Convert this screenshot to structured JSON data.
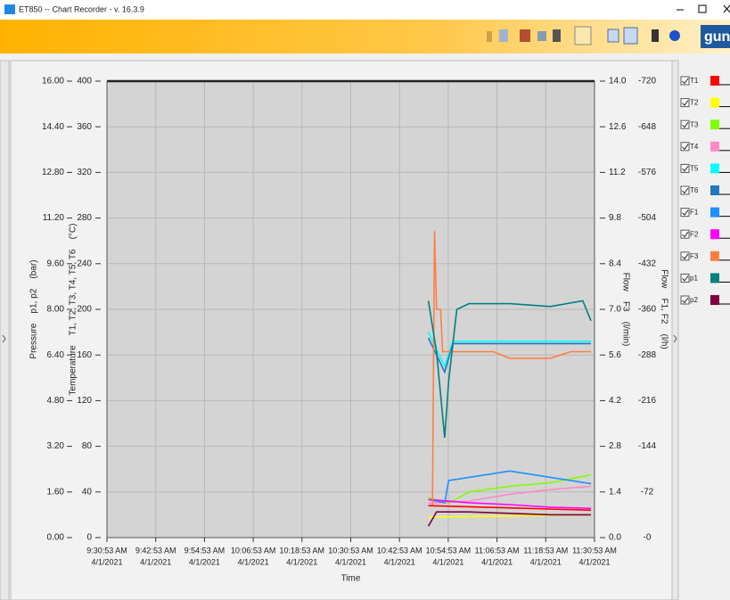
{
  "window": {
    "title": "ET850  --  Chart Recorder - v. 16.3.9",
    "logo": "gunt"
  },
  "chart_data": {
    "type": "line",
    "xlabel": "Time",
    "xlim": [
      "9:30:53 AM",
      "11:30:53 AM"
    ],
    "xticks": [
      {
        "time": "9:30:53 AM",
        "date": "4/1/2021"
      },
      {
        "time": "9:42:53 AM",
        "date": "4/1/2021"
      },
      {
        "time": "9:54:53 AM",
        "date": "4/1/2021"
      },
      {
        "time": "10:06:53 AM",
        "date": "4/1/2021"
      },
      {
        "time": "10:18:53 AM",
        "date": "4/1/2021"
      },
      {
        "time": "10:30:53 AM",
        "date": "4/1/2021"
      },
      {
        "time": "10:42:53 AM",
        "date": "4/1/2021"
      },
      {
        "time": "10:54:53 AM",
        "date": "4/1/2021"
      },
      {
        "time": "11:06:53 AM",
        "date": "4/1/2021"
      },
      {
        "time": "11:18:53 AM",
        "date": "4/1/2021"
      },
      {
        "time": "11:30:53 AM",
        "date": "4/1/2021"
      }
    ],
    "grid": true,
    "axes": {
      "pressure": {
        "label": "Pressure    p1, p2    (bar)",
        "ylim": [
          0,
          16
        ],
        "yticks": [
          {
            "value": 0,
            "label": "0.00"
          },
          {
            "value": 1.6,
            "label": "1.60"
          },
          {
            "value": 3.2,
            "label": "3.20"
          },
          {
            "value": 4.8,
            "label": "4.80"
          },
          {
            "value": 6.4,
            "label": "6.40"
          },
          {
            "value": 8,
            "label": "8.00"
          },
          {
            "value": 9.6,
            "label": "9.60"
          },
          {
            "value": 11.2,
            "label": "11.20"
          },
          {
            "value": 12.8,
            "label": "12.80"
          },
          {
            "value": 14.4,
            "label": "14.40"
          },
          {
            "value": 16,
            "label": "16.00"
          }
        ]
      },
      "temperature": {
        "label": "Temperature    T1, T2, T3, T4, T5, T6    (°C)",
        "ylim": [
          0,
          400
        ],
        "yticks": [
          0,
          40,
          80,
          120,
          160,
          200,
          240,
          280,
          320,
          360,
          400
        ]
      },
      "flow_f3": {
        "label": "Flow    F3    (l/min)",
        "ylim": [
          0,
          14
        ],
        "yticks": [
          {
            "value": 0,
            "label": "0.0"
          },
          1.4,
          2.8,
          4.2,
          5.6,
          {
            "value": 7,
            "label": "7.0"
          },
          8.4,
          9.8,
          11.2,
          12.6,
          {
            "value": 14,
            "label": "14.0"
          }
        ]
      },
      "flow_f12": {
        "label": "Flow    F1, F2    (l/h)",
        "ylim": [
          0,
          -720
        ],
        "yticks": [
          {
            "value": 0,
            "label": "-0"
          },
          -72,
          -144,
          -216,
          -288,
          -360,
          -432,
          -504,
          -576,
          -648,
          -720
        ]
      }
    },
    "series": [
      {
        "name": "T1",
        "color": "#ff0000",
        "axis": "temperature",
        "x": [
          "10:50:00 AM",
          "11:00:00 AM",
          "11:10:00 AM",
          "11:20:00 AM",
          "11:30:00 AM"
        ],
        "values": [
          28,
          27,
          26,
          25,
          24
        ]
      },
      {
        "name": "T2",
        "color": "#ffff00",
        "axis": "temperature",
        "x": [
          "10:50:00 AM",
          "11:30:00 AM"
        ],
        "values": [
          18,
          20
        ]
      },
      {
        "name": "T3",
        "color": "#80ff00",
        "axis": "temperature",
        "x": [
          "10:50:00 AM",
          "10:55:00 AM",
          "11:00:00 AM",
          "11:10:00 AM",
          "11:20:00 AM",
          "11:30:00 AM"
        ],
        "values": [
          35,
          30,
          40,
          45,
          48,
          55
        ]
      },
      {
        "name": "T4",
        "color": "#ff88c8",
        "axis": "temperature",
        "x": [
          "10:50:00 AM",
          "11:00:00 AM",
          "11:10:00 AM",
          "11:20:00 AM",
          "11:30:00 AM"
        ],
        "values": [
          30,
          32,
          38,
          42,
          45
        ]
      },
      {
        "name": "T5",
        "color": "#00ffff",
        "axis": "temperature",
        "x": [
          "10:50:00 AM",
          "10:52:00 AM",
          "10:54:00 AM",
          "10:56:00 AM",
          "11:10:00 AM",
          "11:30:00 AM"
        ],
        "values": [
          180,
          165,
          150,
          172,
          172,
          172
        ]
      },
      {
        "name": "T6",
        "color": "#1f78c0",
        "axis": "temperature",
        "x": [
          "10:50:00 AM",
          "10:52:00 AM",
          "10:54:00 AM",
          "10:56:00 AM",
          "11:30:00 AM"
        ],
        "values": [
          175,
          160,
          145,
          170,
          170
        ]
      },
      {
        "name": "F1",
        "color": "#1e90ff",
        "axis": "flow_f12",
        "x": [
          "10:50:00 AM",
          "10:54:00 AM",
          "10:55:00 AM",
          "11:00:00 AM",
          "11:05:00 AM",
          "11:10:00 AM",
          "11:20:00 AM",
          "11:30:00 AM"
        ],
        "values": [
          -60,
          -55,
          -90,
          -95,
          -100,
          -105,
          -95,
          -85
        ]
      },
      {
        "name": "F2",
        "color": "#ff00ff",
        "axis": "flow_f12",
        "x": [
          "10:50:00 AM",
          "11:00:00 AM",
          "11:10:00 AM",
          "11:20:00 AM",
          "11:30:00 AM"
        ],
        "values": [
          -60,
          -55,
          -52,
          -48,
          -46
        ]
      },
      {
        "name": "F3",
        "color": "#ff7f40",
        "axis": "flow_f3",
        "x": [
          "10:51:00 AM",
          "10:51:30 AM",
          "10:52:00 AM",
          "10:53:00 AM",
          "10:53:30 AM",
          "11:06:00 AM",
          "11:10:00 AM",
          "11:20:00 AM",
          "11:25:00 AM",
          "11:30:00 AM"
        ],
        "values": [
          1.0,
          9.4,
          7.0,
          7.0,
          5.7,
          5.7,
          5.5,
          5.5,
          5.7,
          5.7
        ]
      },
      {
        "name": "p1",
        "color": "#008080",
        "axis": "pressure",
        "x": [
          "10:50:00 AM",
          "10:52:00 AM",
          "10:54:00 AM",
          "10:55:00 AM",
          "10:57:00 AM",
          "11:00:00 AM",
          "11:10:00 AM",
          "11:20:00 AM",
          "11:28:00 AM",
          "11:30:00 AM"
        ],
        "values": [
          8.3,
          6.5,
          3.5,
          5.5,
          8.0,
          8.2,
          8.2,
          8.1,
          8.3,
          7.6
        ]
      },
      {
        "name": "p2",
        "color": "#800040",
        "axis": "pressure",
        "x": [
          "10:50:00 AM",
          "10:52:00 AM",
          "11:00:00 AM",
          "11:10:00 AM",
          "11:20:00 AM",
          "11:30:00 AM"
        ],
        "values": [
          0.4,
          0.9,
          0.9,
          0.85,
          0.8,
          0.8
        ]
      }
    ]
  }
}
